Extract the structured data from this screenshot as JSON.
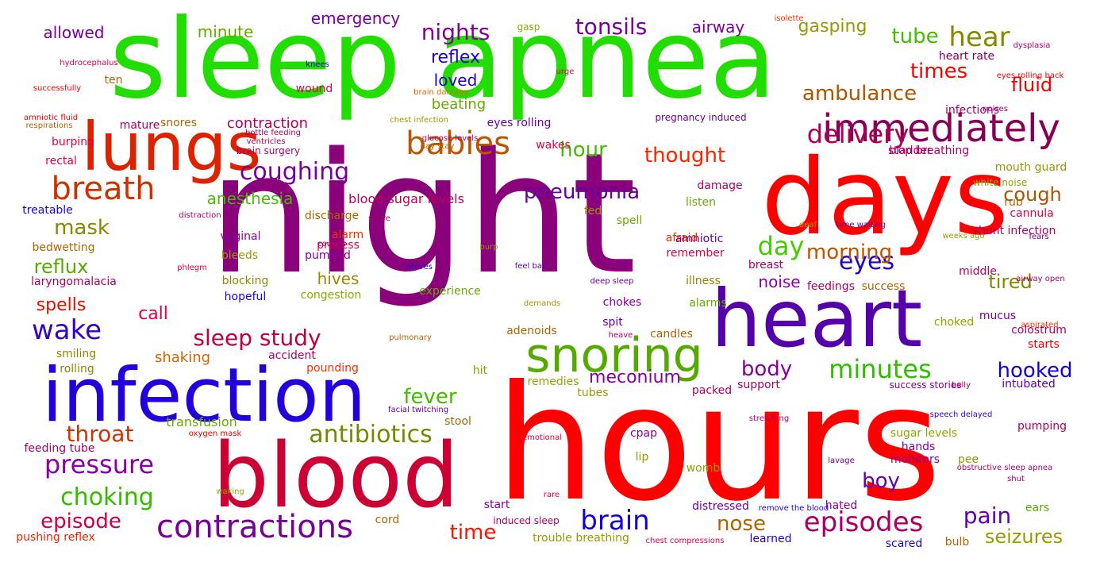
{
  "words": [
    {
      "text": "night",
      "color": "#8b007b"
    },
    {
      "text": "hours",
      "color": "#ff0000"
    },
    {
      "text": "sleep apnea",
      "color": "#22dd00"
    },
    {
      "text": "blood",
      "color": "#cc0033"
    },
    {
      "text": "heart",
      "color": "#5500aa"
    },
    {
      "text": "days",
      "color": "#ff0000"
    },
    {
      "text": "infection",
      "color": "#2200dd"
    },
    {
      "text": "lungs",
      "color": "#dd2200"
    },
    {
      "text": "snoring",
      "color": "#55aa00"
    },
    {
      "text": "immediately",
      "color": "#880055"
    },
    {
      "text": "contractions",
      "color": "#770099"
    },
    {
      "text": "breath",
      "color": "#cc3300"
    },
    {
      "text": "babies",
      "color": "#bb5500"
    },
    {
      "text": "delivery",
      "color": "#aa0055"
    },
    {
      "text": "episodes",
      "color": "#aa0066"
    },
    {
      "text": "brain",
      "color": "#1100dd"
    },
    {
      "text": "antibiotics",
      "color": "#778800"
    },
    {
      "text": "wake",
      "color": "#3300cc"
    },
    {
      "text": "hear",
      "color": "#888800"
    },
    {
      "text": "day",
      "color": "#44cc00"
    },
    {
      "text": "ambulance",
      "color": "#aa5500"
    },
    {
      "text": "eyes",
      "color": "#2200cc"
    },
    {
      "text": "coughing",
      "color": "#770099"
    },
    {
      "text": "pressure",
      "color": "#8800aa"
    },
    {
      "text": "choking",
      "color": "#33bb00"
    },
    {
      "text": "throat",
      "color": "#cc3300"
    },
    {
      "text": "sleep study",
      "color": "#bb0044"
    },
    {
      "text": "nights",
      "color": "#880099"
    },
    {
      "text": "tonsils",
      "color": "#770099"
    },
    {
      "text": "minutes",
      "color": "#33bb00"
    },
    {
      "text": "morning",
      "color": "#bb5500"
    },
    {
      "text": "pneumonia",
      "color": "#660099"
    },
    {
      "text": "times",
      "color": "#ff0000"
    },
    {
      "text": "hour",
      "color": "#44bb00"
    },
    {
      "text": "thought",
      "color": "#ff2200"
    },
    {
      "text": "episode",
      "color": "#cc0044"
    },
    {
      "text": "nose",
      "color": "#aa6600"
    },
    {
      "text": "time",
      "color": "#ff1100"
    },
    {
      "text": "pain",
      "color": "#6600aa"
    },
    {
      "text": "boy",
      "color": "#6600aa"
    },
    {
      "text": "cough",
      "color": "#aa5500"
    },
    {
      "text": "hooked",
      "color": "#1100dd"
    },
    {
      "text": "fever",
      "color": "#44bb00"
    },
    {
      "text": "meconium",
      "color": "#880099"
    },
    {
      "text": "body",
      "color": "#880099"
    },
    {
      "text": "mask",
      "color": "#888800"
    },
    {
      "text": "tube",
      "color": "#44bb00"
    },
    {
      "text": "fluid",
      "color": "#ee0000"
    },
    {
      "text": "spells",
      "color": "#dd1100"
    },
    {
      "text": "reflux",
      "color": "#55aa00"
    },
    {
      "text": "tired",
      "color": "#888800"
    },
    {
      "text": "seizures",
      "color": "#999900"
    },
    {
      "text": "anesthesia",
      "color": "#44bb00"
    },
    {
      "text": "gasping",
      "color": "#999900"
    },
    {
      "text": "emergency",
      "color": "#770099"
    },
    {
      "text": "airway",
      "color": "#770099"
    },
    {
      "text": "allowed",
      "color": "#770099"
    },
    {
      "text": "minute",
      "color": "#66aa00"
    },
    {
      "text": "reflex",
      "color": "#2200cc"
    },
    {
      "text": "loved",
      "color": "#2200cc"
    },
    {
      "text": "beating",
      "color": "#66aa00"
    },
    {
      "text": "shaking",
      "color": "#cc6600"
    },
    {
      "text": "hives",
      "color": "#998800"
    },
    {
      "text": "noise",
      "color": "#8800aa"
    },
    {
      "text": "call",
      "color": "#dd0044"
    },
    {
      "text": "contraction",
      "color": "#aa0066"
    },
    {
      "text": "blood sugar levels",
      "color": "#bb0055"
    },
    {
      "text": "heart rate",
      "color": "#880066"
    },
    {
      "text": "stop breathing",
      "color": "#aa0066"
    },
    {
      "text": "mouth guard",
      "color": "#999900"
    },
    {
      "text": "shunt infection",
      "color": "#aa0066"
    },
    {
      "text": "white noise",
      "color": "#88aa00"
    },
    {
      "text": "pregnancy induced",
      "color": "#660099"
    },
    {
      "text": "success stories",
      "color": "#880099"
    },
    {
      "text": "trouble breathing",
      "color": "#999900"
    },
    {
      "text": "induced sleep",
      "color": "#aa0066"
    },
    {
      "text": "brain surgery",
      "color": "#aa0066"
    },
    {
      "text": "bedwetting",
      "color": "#aa6600"
    },
    {
      "text": "laryngomalacia",
      "color": "#aa0066"
    },
    {
      "text": "feeding tube",
      "color": "#aa0066"
    },
    {
      "text": "pushing reflex",
      "color": "#ee2200"
    },
    {
      "text": "eyes rolling",
      "color": "#660099"
    },
    {
      "text": "sugar levels",
      "color": "#88aa00"
    },
    {
      "text": "monitors",
      "color": "#880099"
    },
    {
      "text": "pee",
      "color": "#999900"
    },
    {
      "text": "scared",
      "color": "#2200cc"
    },
    {
      "text": "bulb",
      "color": "#aa6600"
    },
    {
      "text": "learned",
      "color": "#2200cc"
    },
    {
      "text": "hated",
      "color": "#880099"
    },
    {
      "text": "distressed",
      "color": "#660099"
    },
    {
      "text": "womb",
      "color": "#999900"
    },
    {
      "text": "cpap",
      "color": "#880099"
    },
    {
      "text": "lip",
      "color": "#999900"
    },
    {
      "text": "start",
      "color": "#880099"
    },
    {
      "text": "cord",
      "color": "#aa6600"
    },
    {
      "text": "stool",
      "color": "#aa6600"
    },
    {
      "text": "transfusion",
      "color": "#66aa00"
    },
    {
      "text": "rolling",
      "color": "#888800"
    },
    {
      "text": "smiling",
      "color": "#888800"
    },
    {
      "text": "accident",
      "color": "#aa0066"
    },
    {
      "text": "pounding",
      "color": "#ee3300"
    },
    {
      "text": "hit",
      "color": "#999900"
    },
    {
      "text": "remedies",
      "color": "#88aa00"
    },
    {
      "text": "tubes",
      "color": "#999900"
    },
    {
      "text": "packed",
      "color": "#aa0066"
    },
    {
      "text": "support",
      "color": "#aa0066"
    },
    {
      "text": "intubated",
      "color": "#660099"
    },
    {
      "text": "speech delayed",
      "color": "#3300cc"
    },
    {
      "text": "pumping",
      "color": "#aa0066"
    },
    {
      "text": "hands",
      "color": "#880099"
    },
    {
      "text": "ears",
      "color": "#55aa00"
    },
    {
      "text": "starts",
      "color": "#ee0000"
    },
    {
      "text": "colostrum",
      "color": "#aa0066"
    },
    {
      "text": "mucus",
      "color": "#770099"
    },
    {
      "text": "choked",
      "color": "#88aa00"
    },
    {
      "text": "middle",
      "color": "#aa0066"
    },
    {
      "text": "feedings",
      "color": "#aa0066"
    },
    {
      "text": "success",
      "color": "#aa6600"
    },
    {
      "text": "illness",
      "color": "#888800"
    },
    {
      "text": "alarms",
      "color": "#66aa00"
    },
    {
      "text": "chokes",
      "color": "#880099"
    },
    {
      "text": "spit",
      "color": "#660099"
    },
    {
      "text": "adenoids",
      "color": "#aa6600"
    },
    {
      "text": "candles",
      "color": "#aa6600"
    },
    {
      "text": "experience",
      "color": "#66aa00"
    },
    {
      "text": "congestion",
      "color": "#88aa00"
    },
    {
      "text": "hopeful",
      "color": "#2200cc"
    },
    {
      "text": "blocking",
      "color": "#888800"
    },
    {
      "text": "pumped",
      "color": "#880099"
    },
    {
      "text": "process",
      "color": "#dd0044"
    },
    {
      "text": "alarm",
      "color": "#ee3300"
    },
    {
      "text": "bleeds",
      "color": "#999900"
    },
    {
      "text": "vaginal",
      "color": "#880099"
    },
    {
      "text": "discharge",
      "color": "#aa6600"
    },
    {
      "text": "fed",
      "color": "#999900"
    },
    {
      "text": "damage",
      "color": "#aa0066"
    },
    {
      "text": "listen",
      "color": "#66aa00"
    },
    {
      "text": "spell",
      "color": "#66aa00"
    },
    {
      "text": "amniotic",
      "color": "#660099"
    },
    {
      "text": "afraid",
      "color": "#dd3300"
    },
    {
      "text": "remember",
      "color": "#dd0044"
    },
    {
      "text": "breast",
      "color": "#aa0066"
    },
    {
      "text": "cannula",
      "color": "#dd0044"
    },
    {
      "text": "rub",
      "color": "#aa6600"
    },
    {
      "text": "bladder",
      "color": "#aa0066"
    },
    {
      "text": "wakes",
      "color": "#dd0044"
    },
    {
      "text": "snores",
      "color": "#aa6600"
    },
    {
      "text": "burping",
      "color": "#dd0044"
    },
    {
      "text": "rectal",
      "color": "#dd0044"
    },
    {
      "text": "treatable",
      "color": "#2200cc"
    },
    {
      "text": "mature",
      "color": "#aa0066"
    },
    {
      "text": "ten",
      "color": "#aa6600"
    },
    {
      "text": "wound",
      "color": "#dd0044"
    },
    {
      "text": "infections",
      "color": "#aa0066"
    },
    {
      "text": "gasp",
      "color": "#88aa00"
    },
    {
      "text": "hydrocephalus",
      "color": "#dd0044"
    },
    {
      "text": "successfully",
      "color": "#ee0000"
    },
    {
      "text": "amniotic fluid",
      "color": "#ee0000"
    },
    {
      "text": "respirations",
      "color": "#aa6600"
    },
    {
      "text": "chest infection",
      "color": "#999900"
    },
    {
      "text": "bottle feeding",
      "color": "#aa0066"
    },
    {
      "text": "ventricles",
      "color": "#aa0066"
    },
    {
      "text": "glucose levels",
      "color": "#aa0066"
    },
    {
      "text": "day stay",
      "color": "#aa6600"
    },
    {
      "text": "brain damage",
      "color": "#dd6600"
    },
    {
      "text": "distraction",
      "color": "#aa0066"
    },
    {
      "text": "knees",
      "color": "#2200cc"
    },
    {
      "text": "urge",
      "color": "#dd0044"
    },
    {
      "text": "isolette",
      "color": "#ee3300"
    },
    {
      "text": "dysplasia",
      "color": "#aa0066"
    },
    {
      "text": "eyes rolling back",
      "color": "#ee0000"
    },
    {
      "text": "noises",
      "color": "#aa0066"
    },
    {
      "text": "deaf",
      "color": "#999900"
    },
    {
      "text": "time waiting",
      "color": "#660099"
    },
    {
      "text": "weeks ago",
      "color": "#999900"
    },
    {
      "text": "fears",
      "color": "#660099"
    },
    {
      "text": "airway open",
      "color": "#aa0066"
    },
    {
      "text": "aspirated",
      "color": "#ee3300"
    },
    {
      "text": "belly",
      "color": "#aa0066"
    },
    {
      "text": "stretching",
      "color": "#aa0066"
    },
    {
      "text": "obstructive sleep apnea",
      "color": "#aa0066"
    },
    {
      "text": "shut",
      "color": "#aa0066"
    },
    {
      "text": "lavage",
      "color": "#660099"
    },
    {
      "text": "remove the blood",
      "color": "#2200cc"
    },
    {
      "text": "chest compressions",
      "color": "#dd0044"
    },
    {
      "text": "rare",
      "color": "#dd0044"
    },
    {
      "text": "waking",
      "color": "#88aa00"
    },
    {
      "text": "emotional",
      "color": "#dd0044"
    },
    {
      "text": "oxygen mask",
      "color": "#ee0000"
    },
    {
      "text": "facial twitching",
      "color": "#660099"
    },
    {
      "text": "pulmonary",
      "color": "#aa6600"
    },
    {
      "text": "heave",
      "color": "#aa0066"
    },
    {
      "text": "demands",
      "color": "#999900"
    },
    {
      "text": "deep sleep",
      "color": "#660099"
    },
    {
      "text": "feel bad",
      "color": "#660099"
    },
    {
      "text": "nerves",
      "color": "#2200cc"
    },
    {
      "text": "burp",
      "color": "#999900"
    },
    {
      "text": "phlegm",
      "color": "#dd0044"
    },
    {
      "text": "coughs",
      "color": "#aa0066"
    },
    {
      "text": "snore",
      "color": "#aa0066"
    }
  ]
}
